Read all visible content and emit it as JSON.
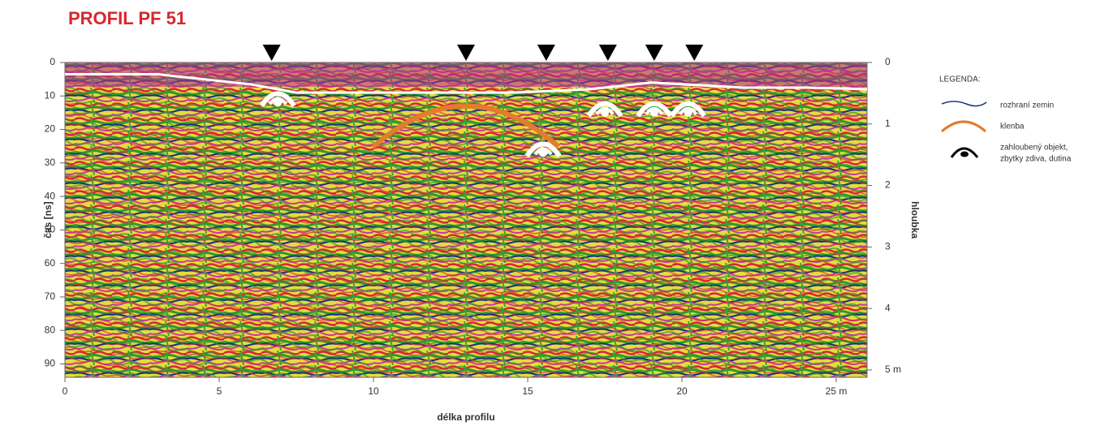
{
  "chart_data": {
    "type": "radargram",
    "title": "PROFIL PF 51",
    "xlabel": "délka profilu",
    "ylabel": "čas [ns]",
    "y2label": "hloubka",
    "xlim": [
      0,
      26
    ],
    "xticks": [
      0,
      5,
      10,
      15,
      20,
      {
        "value": 25,
        "label": "25 m"
      }
    ],
    "ylim": [
      0,
      94
    ],
    "yticks": [
      0,
      10,
      20,
      30,
      40,
      50,
      60,
      70,
      80,
      90
    ],
    "y2lim": [
      0,
      5.12
    ],
    "y2ticks": [
      0,
      1,
      2,
      3,
      4,
      {
        "value": 5,
        "label": "5 m"
      }
    ],
    "markers": [
      6.7,
      13.0,
      15.6,
      17.6,
      19.1,
      20.4
    ],
    "interface": {
      "x": [
        0,
        3,
        6,
        7.5,
        12,
        14.5,
        17,
        19,
        22,
        24,
        26
      ],
      "y": [
        3.5,
        3.5,
        6.5,
        9,
        9,
        9,
        8,
        6,
        7.5,
        7.5,
        8
      ]
    },
    "vault": {
      "x": 13.0,
      "y": 13,
      "halfwidth": 3
    },
    "objects": {
      "x": [
        6.9,
        15.5,
        17.5,
        19.1,
        20.2
      ],
      "y": [
        11,
        26,
        14,
        14,
        14
      ]
    },
    "legend": {
      "title": "LEGENDA:",
      "items": [
        {
          "label": [
            "rozhraní zemin"
          ]
        },
        {
          "label": [
            "klenba"
          ]
        },
        {
          "label": [
            "zahloubený objekt,",
            "zbytky zdiva, dutina"
          ]
        }
      ]
    }
  }
}
